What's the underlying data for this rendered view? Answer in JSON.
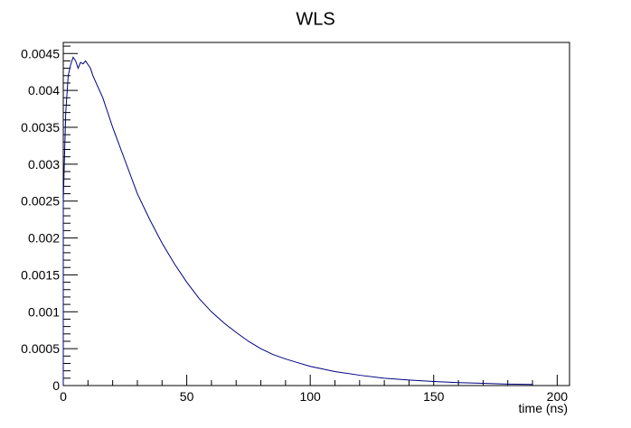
{
  "chart_data": {
    "type": "line",
    "title": "WLS",
    "xlabel": "time (ns)",
    "ylabel": "",
    "xlim": [
      0,
      205
    ],
    "ylim": [
      0,
      0.00465
    ],
    "x_ticks": [
      {
        "value": 0,
        "label": "0"
      },
      {
        "value": 50,
        "label": "50"
      },
      {
        "value": 100,
        "label": "100"
      },
      {
        "value": 150,
        "label": "150"
      },
      {
        "value": 200,
        "label": "200"
      }
    ],
    "y_ticks": [
      {
        "value": 0,
        "label": "0"
      },
      {
        "value": 0.0005,
        "label": "0.0005"
      },
      {
        "value": 0.001,
        "label": "0.001"
      },
      {
        "value": 0.0015,
        "label": "0.0015"
      },
      {
        "value": 0.002,
        "label": "0.002"
      },
      {
        "value": 0.0025,
        "label": "0.0025"
      },
      {
        "value": 0.003,
        "label": "0.003"
      },
      {
        "value": 0.0035,
        "label": "0.0035"
      },
      {
        "value": 0.004,
        "label": "0.004"
      },
      {
        "value": 0.0045,
        "label": "0.0045"
      }
    ],
    "grid": false,
    "series": [
      {
        "color": "#000080",
        "x": [
          0,
          1,
          2,
          3,
          4,
          5,
          6,
          7,
          8,
          9,
          10,
          11,
          12,
          14,
          16,
          18,
          20,
          25,
          30,
          35,
          40,
          45,
          50,
          55,
          60,
          65,
          70,
          75,
          80,
          85,
          90,
          95,
          100,
          110,
          120,
          130,
          140,
          150,
          160,
          170,
          180,
          190
        ],
        "y": [
          0.0025,
          0.0037,
          0.0042,
          0.00435,
          0.00445,
          0.0044,
          0.0043,
          0.00438,
          0.00436,
          0.0044,
          0.00435,
          0.0043,
          0.0042,
          0.00405,
          0.0039,
          0.0037,
          0.0035,
          0.00305,
          0.0026,
          0.00225,
          0.00193,
          0.00165,
          0.0014,
          0.00118,
          0.001,
          0.00085,
          0.00072,
          0.0006,
          0.0005,
          0.00042,
          0.00036,
          0.00031,
          0.00026,
          0.00019,
          0.00014,
          0.0001,
          7.5e-05,
          5.5e-05,
          4e-05,
          3e-05,
          2e-05,
          1.5e-05
        ]
      }
    ]
  }
}
